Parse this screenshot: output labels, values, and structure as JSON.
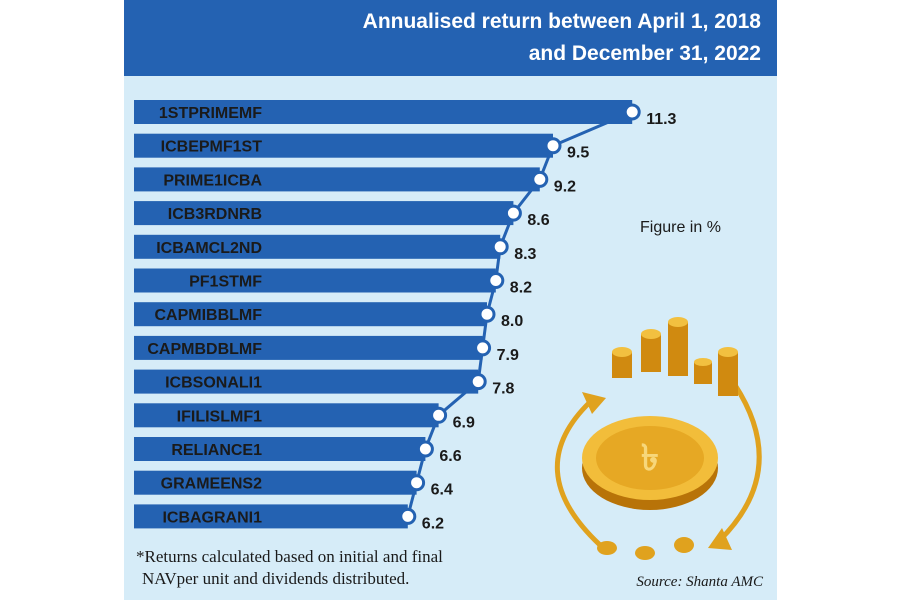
{
  "header": {
    "title_line1": "Annualised return between April 1, 2018",
    "title_line2": "and December 31, 2022"
  },
  "unit_note": "Figure in %",
  "footnote": {
    "line1": "*Returns calculated based on initial and final",
    "line2": "NAVper unit and dividends distributed."
  },
  "source": "Source: Shanta AMC",
  "colors": {
    "bar": "#2462b2",
    "background": "#d6ecf8",
    "coin": "#e0a21e"
  },
  "chart_data": {
    "type": "bar",
    "orientation": "horizontal",
    "title": "Annualised return between April 1, 2018 and December 31, 2022",
    "unit": "%",
    "categories": [
      "1STPRIMEMF",
      "ICBEPMF1ST",
      "PRIME1ICBA",
      "ICB3RDNRB",
      "ICBAMCL2ND",
      "PF1STMF",
      "CAPMIBBLMF",
      "CAPMBDBLMF",
      "ICBSONALI1",
      "IFILISLMF1",
      "RELIANCE1",
      "GRAMEENS2",
      "ICBAGRANI1"
    ],
    "values": [
      11.3,
      9.5,
      9.2,
      8.6,
      8.3,
      8.2,
      8.0,
      7.9,
      7.8,
      6.9,
      6.6,
      6.4,
      6.2
    ],
    "value_labels": [
      "11.3",
      "9.5",
      "9.2",
      "8.6",
      "8.3",
      "8.2",
      "8.0",
      "7.9",
      "7.8",
      "6.9",
      "6.6",
      "6.4",
      "6.2"
    ],
    "xlabel": "",
    "ylabel": "",
    "grid": false,
    "legend": false
  }
}
